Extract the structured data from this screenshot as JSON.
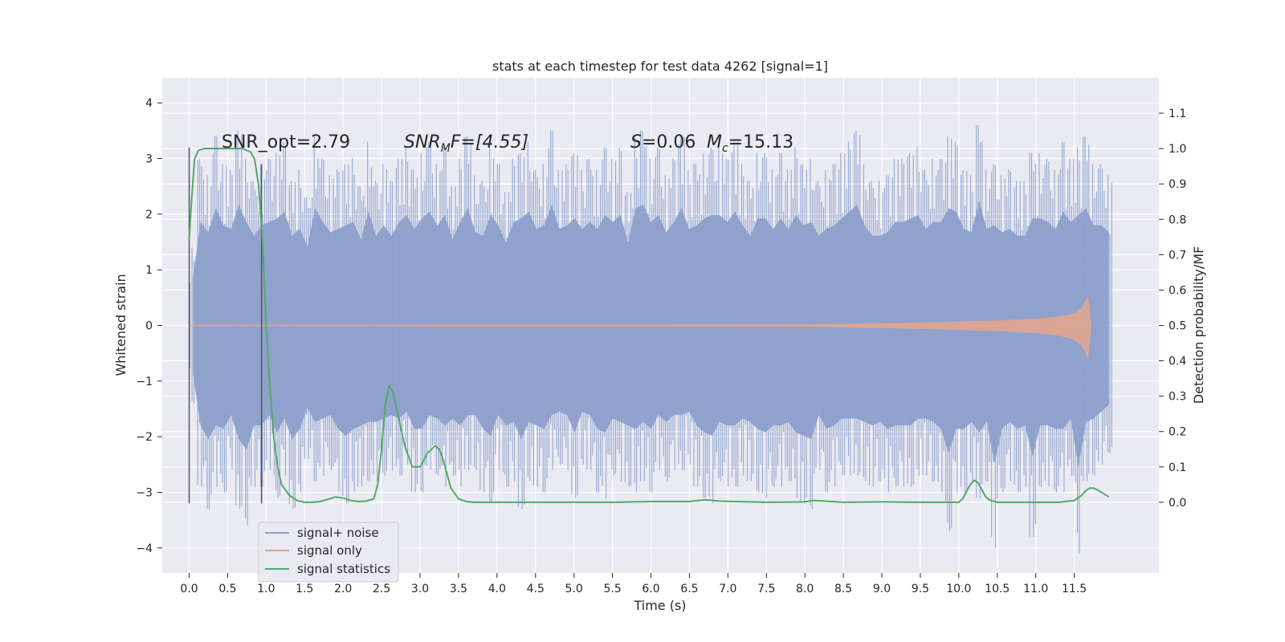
{
  "chart_data": {
    "type": "line",
    "title": "stats at each timestep for test data 4262 [signal=1]",
    "xlabel": "Time (s)",
    "ylabel": "Whitened strain",
    "ylabel_right": "Detection probability/MF",
    "xlim": [
      -0.35,
      12.6
    ],
    "ylim": [
      -4.45,
      4.45
    ],
    "ylim_right": [
      -0.2,
      1.2
    ],
    "x_ticks": [
      0.0,
      0.5,
      1.0,
      1.5,
      2.0,
      2.5,
      3.0,
      3.5,
      4.0,
      4.5,
      5.0,
      5.5,
      6.0,
      6.5,
      7.0,
      7.5,
      8.0,
      8.5,
      9.0,
      9.5,
      10.0,
      10.5,
      11.0,
      11.5
    ],
    "x_tick_labels": [
      "0.0",
      "0.5",
      "1.0",
      "1.5",
      "2.0",
      "2.5",
      "3.0",
      "3.5",
      "4.0",
      "4.5",
      "5.0",
      "5.5",
      "6.0",
      "6.5",
      "7.0",
      "7.5",
      "8.0",
      "8.5",
      "9.0",
      "9.5",
      "10.0",
      "10.5",
      "11.0",
      "11.5"
    ],
    "y_ticks": [
      4,
      3,
      2,
      1,
      0,
      -1,
      -2,
      -3,
      -4
    ],
    "y_tick_labels": [
      "4",
      "3",
      "2",
      "1",
      "0",
      "−1",
      "−2",
      "−3",
      "−4"
    ],
    "y_right_ticks": [
      1.1,
      1.0,
      0.9,
      0.8,
      0.7,
      0.6,
      0.5,
      0.4,
      0.3,
      0.2,
      0.1,
      0.0
    ],
    "y_right_tick_labels": [
      "1.1",
      "1.0",
      "0.9",
      "0.8",
      "0.7",
      "0.6",
      "0.5",
      "0.4",
      "0.3",
      "0.2",
      "0.1",
      "0.0"
    ],
    "grid": true,
    "legend_position": "lower-left",
    "annotations": {
      "snr_opt": "SNR_opt=2.79",
      "snr_mf_sym": "SNR",
      "snr_mf_sub": "M",
      "snr_mf_rest": "F=[4.55]",
      "s_sym": "S",
      "s_rest": "=0.06",
      "mc_sym": "M",
      "mc_sub": "c",
      "mc_rest": "=15.13"
    },
    "vertical_markers": [
      {
        "x": 0.0,
        "y_range": [
          -3.2,
          3.2
        ]
      },
      {
        "x": 0.94,
        "y_range": [
          -3.2,
          2.9
        ]
      }
    ],
    "series": [
      {
        "name": "signal+ noise",
        "color": "#8da0cb",
        "axis": "left",
        "x_range": [
          0.0,
          12.0
        ],
        "envelope_pos": [
          1.4,
          3.0,
          2.7,
          3.4,
          2.9,
          2.8,
          3.5,
          3.0,
          2.6,
          2.9,
          3.0,
          3.1,
          3.3,
          2.6,
          2.8,
          2.3,
          3.4,
          3.0,
          2.7,
          2.8,
          2.9,
          3.0,
          2.5,
          3.3,
          2.6,
          2.9,
          2.6,
          3.0,
          3.2,
          2.8,
          3.1,
          3.3,
          2.9,
          3.2,
          2.5,
          3.0,
          3.4,
          2.7,
          2.6,
          3.2,
          2.9,
          2.4,
          3.0,
          3.1,
          3.3,
          2.8,
          2.9,
          3.5,
          2.8,
          2.9,
          3.1,
          2.8,
          3.0,
          2.8,
          3.2,
          3.0,
          3.2,
          2.4,
          3.4,
          3.5,
          3.0,
          3.2,
          2.7,
          3.0,
          3.4,
          2.8,
          2.9,
          3.1,
          3.2,
          3.2,
          3.0,
          3.3,
          2.9,
          2.6,
          3.1,
          3.1,
          2.8,
          3.1,
          2.8,
          3.2,
          2.9,
          3.0,
          2.6,
          2.8,
          2.9,
          3.1,
          3.3,
          3.5,
          2.9,
          2.6,
          2.6,
          2.7,
          3.0,
          3.0,
          3.1,
          3.2,
          2.8,
          3.0,
          3.0,
          3.4,
          3.3,
          2.8,
          2.7,
          3.6,
          2.8,
          2.9,
          2.7,
          2.8,
          2.6,
          2.6,
          3.1,
          3.1,
          3.0,
          2.8,
          3.3,
          3.0,
          3.2,
          3.4,
          2.9,
          2.9,
          2.7
        ],
        "envelope_neg": [
          -1.4,
          -2.9,
          -3.3,
          -2.9,
          -3.0,
          -2.6,
          -3.3,
          -3.6,
          -2.9,
          -2.9,
          -2.6,
          -3.1,
          -2.7,
          -3.3,
          -3.0,
          -2.4,
          -2.8,
          -2.7,
          -2.6,
          -3.0,
          -3.2,
          -3.0,
          -2.9,
          -2.8,
          -2.8,
          -2.7,
          -2.6,
          -2.7,
          -2.5,
          -3.0,
          -3.0,
          -2.6,
          -2.7,
          -2.9,
          -2.7,
          -2.9,
          -2.6,
          -2.6,
          -3.0,
          -3.2,
          -2.6,
          -2.9,
          -2.8,
          -3.3,
          -2.8,
          -2.9,
          -3.0,
          -2.6,
          -2.5,
          -2.6,
          -3.1,
          -2.5,
          -2.6,
          -3.0,
          -3.1,
          -2.7,
          -2.8,
          -2.9,
          -3.0,
          -2.8,
          -3.0,
          -2.6,
          -2.8,
          -2.6,
          -2.6,
          -2.5,
          -2.9,
          -3.1,
          -3.2,
          -2.8,
          -2.9,
          -2.9,
          -2.7,
          -2.8,
          -3.0,
          -3.1,
          -2.9,
          -2.9,
          -2.8,
          -3.1,
          -3.2,
          -3.3,
          -2.6,
          -3.0,
          -2.9,
          -2.7,
          -2.7,
          -2.7,
          -2.8,
          -2.9,
          -2.8,
          -3.0,
          -2.9,
          -2.9,
          -2.9,
          -2.7,
          -2.7,
          -2.8,
          -3.0,
          -3.7,
          -3.0,
          -3.0,
          -2.8,
          -3.1,
          -2.8,
          -4.0,
          -3.0,
          -2.8,
          -3.0,
          -2.9,
          -3.8,
          -2.9,
          -2.9,
          -3.0,
          -3.0,
          -2.7,
          -4.1,
          -2.8,
          -2.7,
          -2.5,
          -2.3
        ]
      },
      {
        "name": "signal only",
        "color": "#e5a68c",
        "axis": "left",
        "x": [
          0.0,
          8.0,
          9.0,
          10.0,
          10.5,
          11.0,
          11.3,
          11.5,
          11.6,
          11.65,
          11.68,
          11.7,
          11.72
        ],
        "amplitude": [
          0.0,
          0.02,
          0.04,
          0.07,
          0.09,
          0.12,
          0.16,
          0.22,
          0.32,
          0.45,
          0.55,
          0.3,
          0.0
        ]
      },
      {
        "name": "signal statistics",
        "color": "#55a868",
        "axis": "right",
        "x": [
          0.0,
          0.03,
          0.07,
          0.12,
          0.2,
          0.3,
          0.4,
          0.5,
          0.6,
          0.7,
          0.8,
          0.85,
          0.9,
          0.95,
          1.0,
          1.05,
          1.1,
          1.15,
          1.2,
          1.3,
          1.4,
          1.5,
          1.6,
          1.7,
          1.8,
          1.9,
          2.0,
          2.1,
          2.2,
          2.3,
          2.4,
          2.45,
          2.5,
          2.55,
          2.6,
          2.65,
          2.7,
          2.8,
          2.9,
          3.0,
          3.1,
          3.2,
          3.25,
          3.3,
          3.35,
          3.4,
          3.5,
          3.6,
          3.7,
          3.8,
          4.0,
          4.5,
          5.0,
          5.5,
          6.0,
          6.5,
          6.7,
          6.9,
          7.5,
          8.0,
          8.1,
          8.2,
          8.5,
          9.0,
          9.5,
          10.0,
          10.05,
          10.1,
          10.15,
          10.2,
          10.25,
          10.3,
          10.35,
          10.4,
          10.5,
          10.7,
          11.0,
          11.3,
          11.5,
          11.6,
          11.65,
          11.7,
          11.75,
          11.8,
          11.9,
          11.95
        ],
        "y": [
          0.74,
          0.85,
          0.97,
          0.995,
          1.0,
          1.0,
          1.0,
          1.0,
          1.0,
          1.0,
          0.99,
          0.97,
          0.9,
          0.75,
          0.5,
          0.32,
          0.18,
          0.1,
          0.05,
          0.02,
          0.005,
          0.0,
          0.0,
          0.002,
          0.008,
          0.015,
          0.012,
          0.005,
          0.002,
          0.003,
          0.01,
          0.05,
          0.15,
          0.28,
          0.33,
          0.31,
          0.26,
          0.16,
          0.1,
          0.1,
          0.14,
          0.16,
          0.15,
          0.12,
          0.08,
          0.04,
          0.01,
          0.002,
          0.0,
          0.0,
          0.0,
          0.0,
          0.0,
          0.0,
          0.002,
          0.002,
          0.007,
          0.003,
          0.0,
          0.001,
          0.005,
          0.004,
          0.0,
          0.001,
          0.0,
          0.0,
          0.01,
          0.03,
          0.05,
          0.062,
          0.055,
          0.035,
          0.015,
          0.006,
          0.0,
          0.0,
          0.0,
          0.0,
          0.005,
          0.02,
          0.033,
          0.04,
          0.04,
          0.035,
          0.022,
          0.015
        ]
      }
    ]
  }
}
